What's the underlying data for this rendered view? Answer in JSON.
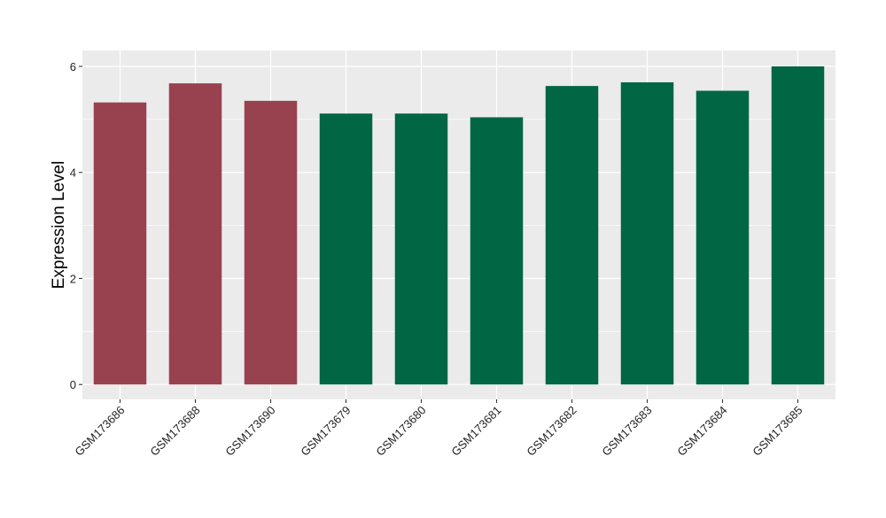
{
  "chart_data": {
    "type": "bar",
    "categories": [
      "GSM173686",
      "GSM173688",
      "GSM173690",
      "GSM173679",
      "GSM173680",
      "GSM173681",
      "GSM173682",
      "GSM173683",
      "GSM173684",
      "GSM173685"
    ],
    "values": [
      5.32,
      5.68,
      5.35,
      5.11,
      5.11,
      5.04,
      5.63,
      5.7,
      5.54,
      6.0
    ],
    "bar_colors": [
      "#99424F",
      "#99424F",
      "#99424F",
      "#006643",
      "#006643",
      "#006643",
      "#006643",
      "#006643",
      "#006643",
      "#006643"
    ],
    "ylabel": "Expression Level",
    "xlabel": "",
    "yticks": [
      0,
      2,
      4,
      6
    ],
    "ylim": [
      -0.28,
      6.3
    ],
    "grid": true,
    "panel_background": "#EBEBEB",
    "grid_color": "#FFFFFF"
  }
}
